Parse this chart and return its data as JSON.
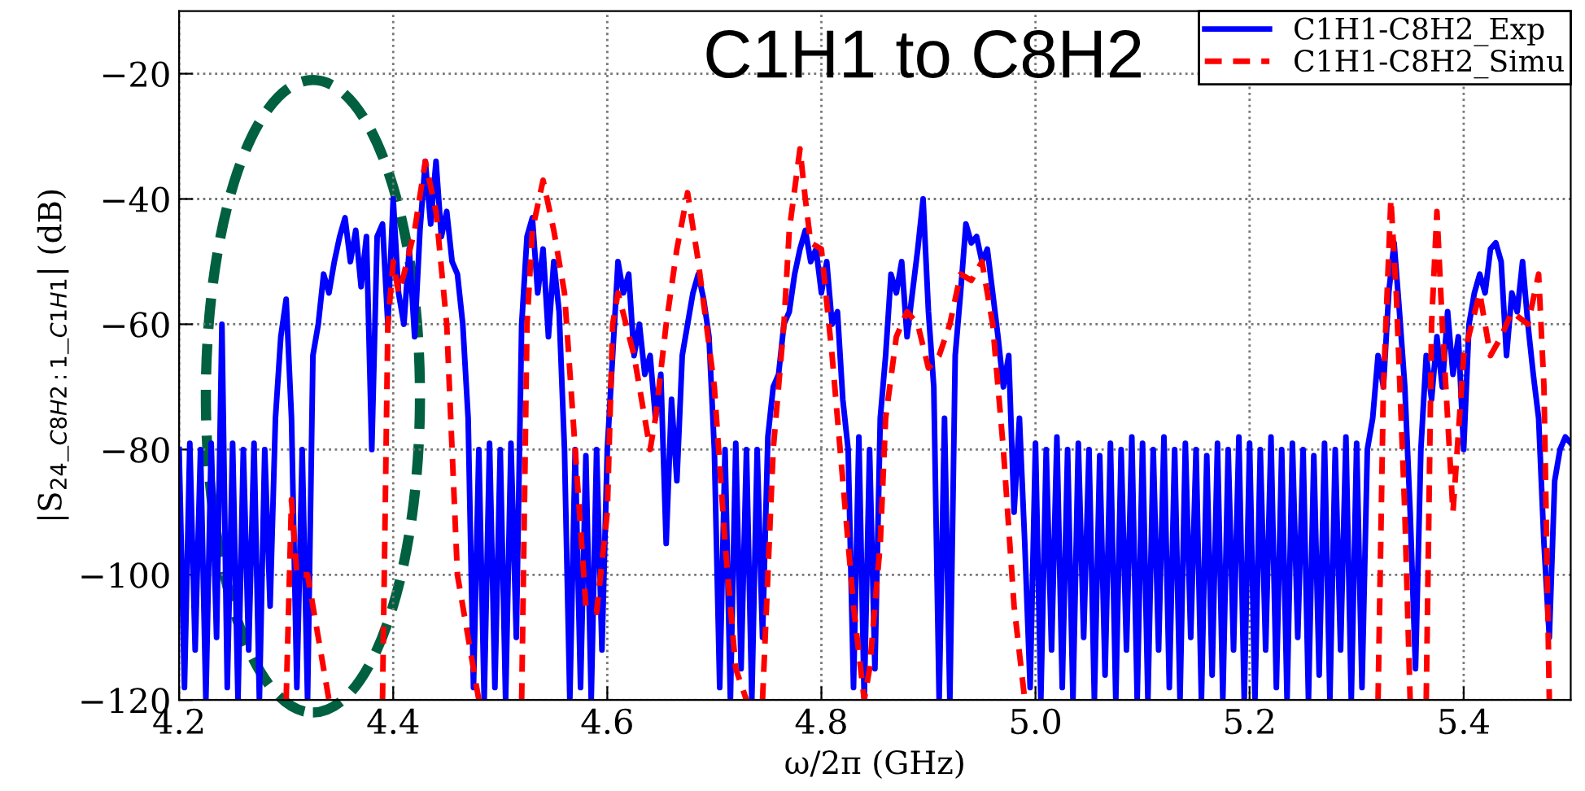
{
  "chart_data": {
    "type": "line",
    "title": "C1H1 to C8H2",
    "xlabel": "ω/2π (GHz)",
    "ylabel": "|S$_{24}$_$_{C8H2:1}$_$_{C1H1}$| (dB)",
    "xlim": [
      4.2,
      5.5
    ],
    "ylim": [
      -120,
      -10
    ],
    "xticks": [
      4.2,
      4.4,
      4.6,
      4.8,
      {
        "value": 5.0,
        "label": "5.0"
      },
      5.2,
      5.4
    ],
    "yticks": [
      -120,
      -100,
      -80,
      -60,
      -40,
      -20
    ],
    "grid": true,
    "legend": "top right",
    "series": [
      {
        "name": "C1H1-C8H2_Exp",
        "color": "#0000ff",
        "line_style": "solid",
        "x": [
          4.2,
          4.205,
          4.21,
          4.215,
          4.22,
          4.225,
          4.23,
          4.235,
          4.24,
          4.245,
          4.25,
          4.255,
          4.26,
          4.265,
          4.27,
          4.275,
          4.28,
          4.285,
          4.29,
          4.295,
          4.3,
          4.305,
          4.31,
          4.315,
          4.32,
          4.325,
          4.33,
          4.335,
          4.34,
          4.345,
          4.35,
          4.355,
          4.36,
          4.365,
          4.37,
          4.375,
          4.38,
          4.385,
          4.39,
          4.395,
          4.4,
          4.405,
          4.41,
          4.415,
          4.42,
          4.425,
          4.43,
          4.435,
          4.44,
          4.445,
          4.45,
          4.455,
          4.46,
          4.465,
          4.47,
          4.475,
          4.48,
          4.485,
          4.49,
          4.495,
          4.5,
          4.505,
          4.51,
          4.515,
          4.52,
          4.525,
          4.53,
          4.535,
          4.54,
          4.545,
          4.55,
          4.555,
          4.56,
          4.565,
          4.57,
          4.575,
          4.58,
          4.585,
          4.59,
          4.595,
          4.6,
          4.605,
          4.61,
          4.615,
          4.62,
          4.625,
          4.63,
          4.635,
          4.64,
          4.645,
          4.65,
          4.655,
          4.66,
          4.665,
          4.67,
          4.675,
          4.68,
          4.685,
          4.69,
          4.695,
          4.7,
          4.705,
          4.71,
          4.715,
          4.72,
          4.725,
          4.73,
          4.735,
          4.74,
          4.745,
          4.75,
          4.755,
          4.76,
          4.765,
          4.77,
          4.775,
          4.78,
          4.785,
          4.79,
          4.795,
          4.8,
          4.805,
          4.81,
          4.815,
          4.82,
          4.825,
          4.83,
          4.835,
          4.84,
          4.845,
          4.85,
          4.855,
          4.86,
          4.865,
          4.87,
          4.875,
          4.88,
          4.885,
          4.89,
          4.895,
          4.9,
          4.905,
          4.91,
          4.915,
          4.92,
          4.925,
          4.93,
          4.935,
          4.94,
          4.945,
          4.95,
          4.955,
          4.96,
          4.965,
          4.97,
          4.975,
          4.98,
          4.985,
          4.99,
          4.995,
          5.0,
          5.005,
          5.01,
          5.015,
          5.02,
          5.025,
          5.03,
          5.035,
          5.04,
          5.045,
          5.05,
          5.055,
          5.06,
          5.065,
          5.07,
          5.075,
          5.08,
          5.085,
          5.09,
          5.095,
          5.1,
          5.105,
          5.11,
          5.115,
          5.12,
          5.125,
          5.13,
          5.135,
          5.14,
          5.145,
          5.15,
          5.155,
          5.16,
          5.165,
          5.17,
          5.175,
          5.18,
          5.185,
          5.19,
          5.195,
          5.2,
          5.205,
          5.21,
          5.215,
          5.22,
          5.225,
          5.23,
          5.235,
          5.24,
          5.245,
          5.25,
          5.255,
          5.26,
          5.265,
          5.27,
          5.275,
          5.28,
          5.285,
          5.29,
          5.295,
          5.3,
          5.305,
          5.31,
          5.315,
          5.32,
          5.325,
          5.33,
          5.335,
          5.34,
          5.345,
          5.35,
          5.355,
          5.36,
          5.365,
          5.37,
          5.375,
          5.38,
          5.385,
          5.39,
          5.395,
          5.4,
          5.405,
          5.41,
          5.415,
          5.42,
          5.425,
          5.43,
          5.435,
          5.44,
          5.445,
          5.45,
          5.455,
          5.46,
          5.465,
          5.47,
          5.475,
          5.48,
          5.485,
          5.49,
          5.495,
          5.5
        ],
        "values": [
          -80,
          -118,
          -79,
          -112,
          -80,
          -120,
          -79,
          -110,
          -60,
          -118,
          -79,
          -120,
          -80,
          -112,
          -79,
          -120,
          -80,
          -105,
          -75,
          -62,
          -56,
          -75,
          -118,
          -80,
          -120,
          -65,
          -60,
          -52,
          -55,
          -50,
          -46,
          -43,
          -50,
          -45,
          -54,
          -46,
          -80,
          -46,
          -44,
          -60,
          -40,
          -55,
          -60,
          -48,
          -62,
          -45,
          -34,
          -44,
          -34,
          -46,
          -42,
          -50,
          -52,
          -60,
          -75,
          -118,
          -80,
          -120,
          -79,
          -118,
          -80,
          -120,
          -79,
          -110,
          -60,
          -46,
          -43,
          -55,
          -48,
          -62,
          -50,
          -58,
          -80,
          -120,
          -80,
          -118,
          -81,
          -120,
          -80,
          -112,
          -80,
          -65,
          -50,
          -55,
          -52,
          -65,
          -60,
          -68,
          -65,
          -75,
          -68,
          -95,
          -72,
          -85,
          -65,
          -60,
          -55,
          -52,
          -56,
          -62,
          -80,
          -118,
          -80,
          -120,
          -79,
          -115,
          -80,
          -120,
          -80,
          -110,
          -78,
          -70,
          -68,
          -60,
          -58,
          -52,
          -48,
          -45,
          -50,
          -48,
          -55,
          -50,
          -60,
          -58,
          -72,
          -80,
          -118,
          -78,
          -120,
          -80,
          -115,
          -75,
          -65,
          -52,
          -55,
          -50,
          -62,
          -55,
          -48,
          -40,
          -58,
          -70,
          -120,
          -75,
          -120,
          -65,
          -55,
          -44,
          -47,
          -46,
          -50,
          -48,
          -55,
          -62,
          -70,
          -65,
          -90,
          -75,
          -95,
          -118,
          -79,
          -120,
          -80,
          -112,
          -78,
          -118,
          -80,
          -120,
          -79,
          -110,
          -80,
          -120,
          -81,
          -116,
          -79,
          -120,
          -80,
          -112,
          -78,
          -120,
          -79,
          -120,
          -80,
          -112,
          -78,
          -118,
          -80,
          -120,
          -79,
          -110,
          -80,
          -120,
          -81,
          -116,
          -79,
          -120,
          -80,
          -112,
          -78,
          -120,
          -79,
          -120,
          -80,
          -112,
          -78,
          -118,
          -80,
          -120,
          -79,
          -110,
          -80,
          -120,
          -81,
          -116,
          -79,
          -120,
          -80,
          -112,
          -78,
          -120,
          -79,
          -118,
          -80,
          -75,
          -65,
          -70,
          -55,
          -47,
          -58,
          -70,
          -90,
          -115,
          -80,
          -65,
          -72,
          -62,
          -70,
          -58,
          -68,
          -62,
          -80,
          -60,
          -55,
          -52,
          -55,
          -48,
          -47,
          -50,
          -65,
          -55,
          -58,
          -50,
          -60,
          -68,
          -75,
          -95,
          -110,
          -85,
          -80,
          -78,
          -79
        ]
      },
      {
        "name": "C1H1-C8H2_Simu",
        "color": "#ff0000",
        "line_style": "dashed",
        "x": [
          4.3,
          4.305,
          4.31,
          4.32,
          4.33,
          4.34,
          4.345,
          4.39,
          4.395,
          4.4,
          4.405,
          4.41,
          4.42,
          4.43,
          4.44,
          4.45,
          4.46,
          4.47,
          4.48,
          4.485,
          4.52,
          4.525,
          4.53,
          4.54,
          4.55,
          4.56,
          4.57,
          4.58,
          4.59,
          4.6,
          4.605,
          4.61,
          4.625,
          4.64,
          4.645,
          4.655,
          4.665,
          4.675,
          4.685,
          4.7,
          4.71,
          4.72,
          4.73,
          4.735,
          4.745,
          4.755,
          4.765,
          4.77,
          4.78,
          4.785,
          4.79,
          4.8,
          4.81,
          4.82,
          4.83,
          4.84,
          4.845,
          4.855,
          4.86,
          4.87,
          4.88,
          4.89,
          4.9,
          4.91,
          4.92,
          4.93,
          4.94,
          4.95,
          4.96,
          4.97,
          4.98,
          4.99,
          4.995,
          5.32,
          5.325,
          5.332,
          5.337,
          5.345,
          5.35,
          5.355,
          5.365,
          5.37,
          5.375,
          5.38,
          5.39,
          5.4,
          5.415,
          5.425,
          5.435,
          5.445,
          5.46,
          5.47,
          5.475,
          5.48
        ],
        "values": [
          -120,
          -88,
          -100,
          -100,
          -110,
          -120,
          null,
          -120,
          -60,
          -50,
          -55,
          -52,
          -45,
          -34,
          -42,
          -60,
          -100,
          -110,
          -120,
          null,
          -120,
          -60,
          -45,
          -37,
          -45,
          -55,
          -80,
          -105,
          -106,
          -90,
          -60,
          -55,
          -65,
          -80,
          -75,
          -60,
          -48,
          -39,
          -50,
          -70,
          -95,
          -115,
          -120,
          null,
          -120,
          -80,
          -60,
          -45,
          -32,
          -40,
          -47,
          -48,
          -65,
          -85,
          -105,
          -120,
          -115,
          -95,
          -75,
          -62,
          -58,
          -60,
          -67,
          -65,
          -60,
          -52,
          -53,
          -50,
          -60,
          -80,
          -105,
          -120,
          null,
          -120,
          -70,
          -40,
          -55,
          -90,
          -120,
          null,
          -120,
          -60,
          -42,
          -60,
          -90,
          -65,
          -55,
          -65,
          -62,
          -58,
          -60,
          -52,
          -70,
          -120
        ]
      }
    ]
  }
}
